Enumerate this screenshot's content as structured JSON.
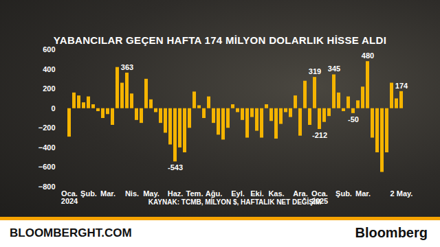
{
  "chart_data": {
    "type": "bar",
    "title": "YABANCILAR GEÇEN HAFTA 174 MİLYON DOLARLIK HİSSE ALDI",
    "source": "KAYNAK: TCMB, MİLYON $, HAFTALIK NET DEĞİŞİM",
    "footer": [
      "BLOOMBERGHT.COM",
      "Bloomberg"
    ],
    "color": "#f5b400",
    "categories": [
      "Oca.\n2024",
      null,
      null,
      null,
      "Şub.",
      null,
      null,
      null,
      "Mar.",
      null,
      null,
      null,
      null,
      "Nis.",
      null,
      null,
      null,
      "May.",
      null,
      null,
      null,
      null,
      "Haz.",
      null,
      null,
      null,
      "Tem.",
      null,
      null,
      null,
      "Ağu.",
      null,
      null,
      null,
      null,
      "Eyl.",
      null,
      null,
      null,
      "Eki.",
      null,
      null,
      null,
      "Kas.",
      null,
      null,
      null,
      null,
      "Ara.",
      null,
      null,
      null,
      "Oca.\n2025",
      null,
      null,
      null,
      null,
      "Şub.",
      null,
      null,
      null,
      "Mar.",
      null,
      null,
      null,
      null,
      null,
      null,
      null,
      "2 May."
    ],
    "values": [
      -290,
      160,
      130,
      60,
      120,
      40,
      -30,
      -100,
      -60,
      -170,
      420,
      260,
      363,
      150,
      -120,
      -150,
      300,
      90,
      -40,
      -150,
      -250,
      -370,
      -543,
      -400,
      -450,
      -200,
      170,
      30,
      -100,
      120,
      -150,
      -270,
      -320,
      -200,
      40,
      -40,
      -120,
      -300,
      -90,
      -230,
      -300,
      40,
      -130,
      -310,
      -160,
      -40,
      -90,
      130,
      -280,
      280,
      -170,
      319,
      -212,
      -140,
      -80,
      345,
      160,
      -30,
      120,
      -50,
      80,
      220,
      480,
      -300,
      -450,
      -650,
      -450,
      260,
      100,
      174
    ],
    "annotations": [
      {
        "index": 12,
        "text": "363"
      },
      {
        "index": 22,
        "text": "-543"
      },
      {
        "index": 51,
        "text": "319"
      },
      {
        "index": 52,
        "text": "-212"
      },
      {
        "index": 55,
        "text": "345"
      },
      {
        "index": 59,
        "text": "-50"
      },
      {
        "index": 62,
        "text": "480"
      },
      {
        "index": 69,
        "text": "174"
      }
    ],
    "ylim": [
      -800,
      600
    ],
    "yticks": [
      -800,
      -600,
      -400,
      -200,
      0,
      200,
      400,
      600
    ],
    "grid": false
  }
}
